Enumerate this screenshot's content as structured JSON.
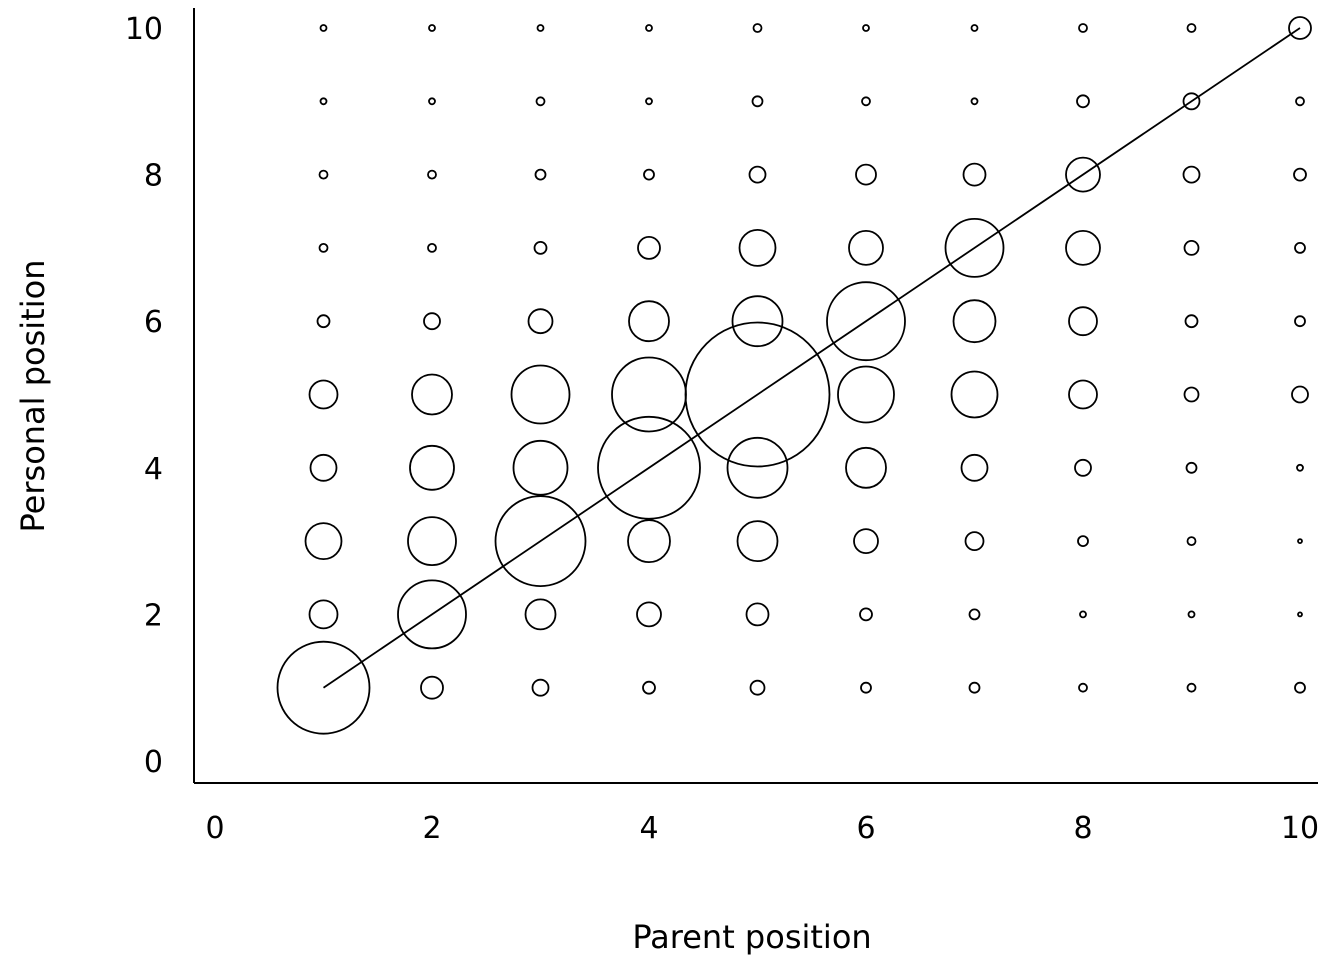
{
  "chart_data": {
    "type": "scatter",
    "subtype": "bubble",
    "title": "",
    "xlabel": "Parent position",
    "ylabel": "Personal position",
    "xlim": [
      0,
      10
    ],
    "ylim": [
      0,
      10
    ],
    "xticks": [
      "0",
      "2",
      "4",
      "6",
      "8",
      "10"
    ],
    "yticks": [
      "0",
      "2",
      "4",
      "6",
      "8",
      "10"
    ],
    "grid": false,
    "legend": "none",
    "reference_line": {
      "from": [
        1,
        1
      ],
      "to": [
        10,
        10
      ]
    },
    "x": [
      1,
      2,
      3,
      4,
      5,
      6,
      7,
      8,
      9,
      10
    ],
    "y": [
      1,
      2,
      3,
      4,
      5,
      6,
      7,
      8,
      9,
      10
    ],
    "bubble_size": [
      [
        46,
        11,
        8,
        6,
        7,
        5,
        5,
        4,
        4,
        5
      ],
      [
        14,
        34,
        15,
        12,
        11,
        6,
        5,
        3,
        3,
        2
      ],
      [
        18,
        24,
        45,
        21,
        20,
        12,
        9,
        5,
        4,
        2
      ],
      [
        13,
        22,
        27,
        51,
        30,
        20,
        13,
        8,
        5,
        3
      ],
      [
        14,
        20,
        29,
        37,
        72,
        28,
        23,
        14,
        7,
        8
      ],
      [
        6,
        8,
        12,
        20,
        25,
        39,
        21,
        14,
        6,
        5
      ],
      [
        4,
        4,
        6,
        11,
        18,
        17,
        29,
        17,
        7,
        5
      ],
      [
        4,
        4,
        5,
        5,
        8,
        10,
        11,
        17,
        8,
        6
      ],
      [
        3,
        3,
        4,
        3,
        5,
        4,
        3,
        6,
        8,
        4
      ],
      [
        3,
        3,
        3,
        3,
        4,
        3,
        3,
        4,
        4,
        11
      ]
    ],
    "bubble_size_note": "rows indexed by y (Personal position 1..10), columns by x (Parent position 1..10); relative circle radius"
  }
}
